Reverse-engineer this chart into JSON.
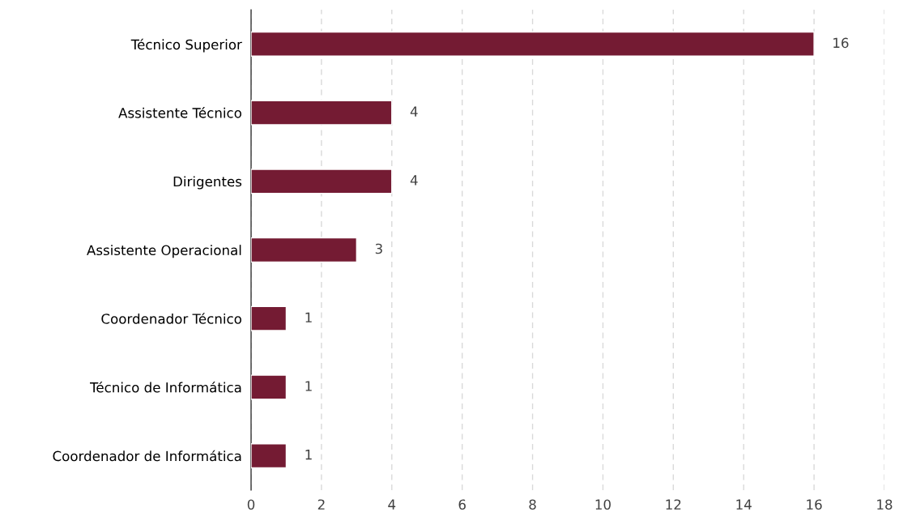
{
  "chart_data": {
    "type": "bar",
    "orientation": "horizontal",
    "categories": [
      "Técnico Superior",
      "Assistente Técnico",
      "Dirigentes",
      "Assistente Operacional",
      "Coordenador Técnico",
      "Técnico de Informática",
      "Coordenador de Informática"
    ],
    "values": [
      16,
      4,
      4,
      3,
      1,
      1,
      1
    ],
    "color": "#741b33",
    "xlim": [
      0,
      18
    ],
    "xticks": [
      0,
      2,
      4,
      6,
      8,
      10,
      12,
      14,
      16,
      18
    ],
    "grid": "x",
    "data_labels": true
  }
}
